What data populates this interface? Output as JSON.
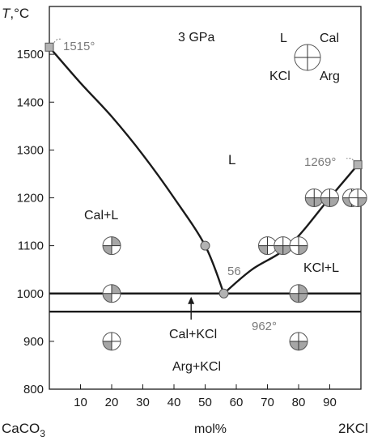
{
  "chart_data": {
    "type": "phase-diagram",
    "pressure_label": "3 GPa",
    "ylabel_symbol": "T",
    "ylabel_unit": ",°C",
    "xlabel": "mol%",
    "x_left_label": "CaCO",
    "x_left_sub": "3",
    "x_right_label": "2KCl",
    "xlim": [
      0,
      100
    ],
    "ylim": [
      800,
      1600
    ],
    "xticks": [
      10,
      20,
      30,
      40,
      50,
      60,
      70,
      80,
      90
    ],
    "yticks": [
      800,
      900,
      1000,
      1100,
      1200,
      1300,
      1400,
      1500
    ],
    "liquidus_left": [
      [
        0,
        1515
      ],
      [
        10,
        1440
      ],
      [
        20,
        1370
      ],
      [
        30,
        1290
      ],
      [
        40,
        1200
      ],
      [
        50,
        1100
      ],
      [
        56,
        1000
      ]
    ],
    "liquidus_right": [
      [
        56,
        1000
      ],
      [
        65,
        1050
      ],
      [
        77,
        1100
      ],
      [
        90,
        1200
      ],
      [
        99,
        1269
      ]
    ],
    "solidus_T": 1000,
    "transition_T": 962,
    "melting_points": [
      {
        "x": 0,
        "T": 1515,
        "label": "1515°"
      },
      {
        "x": 99,
        "T": 1269,
        "label": "1269°"
      }
    ],
    "eutectic": {
      "x": 56,
      "T": 1000,
      "label": "56"
    },
    "transition_label": "962°",
    "field_labels": {
      "liquid": "L",
      "cal_l": "Cal+L",
      "kcl_l": "KCl+L",
      "cal_kcl": "Cal+KCl",
      "arg_kcl": "Arg+KCl"
    },
    "legend": {
      "top_left": "L",
      "top_right": "Cal",
      "bottom_left": "KCl",
      "bottom_right": "Arg"
    },
    "liquidus_points": [
      {
        "x": 50,
        "T": 1100
      },
      {
        "x": 77,
        "T": 1100
      },
      {
        "x": 91,
        "T": 1200
      }
    ],
    "experiments": [
      {
        "x": 20,
        "T": 1100,
        "fill": [
          false,
          true,
          true,
          false
        ]
      },
      {
        "x": 20,
        "T": 1000,
        "fill": [
          false,
          true,
          true,
          false
        ]
      },
      {
        "x": 20,
        "T": 900,
        "fill": [
          false,
          false,
          true,
          false
        ]
      },
      {
        "x": 70,
        "T": 1100,
        "fill": [
          false,
          false,
          true,
          false
        ]
      },
      {
        "x": 75,
        "T": 1100,
        "fill": [
          false,
          false,
          true,
          true
        ]
      },
      {
        "x": 80,
        "T": 1100,
        "fill": [
          false,
          false,
          false,
          true
        ]
      },
      {
        "x": 80,
        "T": 1000,
        "fill": [
          false,
          true,
          true,
          true
        ]
      },
      {
        "x": 80,
        "T": 900,
        "fill": [
          false,
          false,
          true,
          true
        ]
      },
      {
        "x": 85,
        "T": 1200,
        "fill": [
          false,
          false,
          true,
          true
        ]
      },
      {
        "x": 90,
        "T": 1200,
        "fill": [
          false,
          false,
          true,
          true
        ]
      },
      {
        "x": 97,
        "T": 1200,
        "fill": [
          false,
          false,
          true,
          true
        ]
      },
      {
        "x": 99,
        "T": 1200,
        "fill": [
          false,
          false,
          false,
          true
        ]
      }
    ]
  }
}
